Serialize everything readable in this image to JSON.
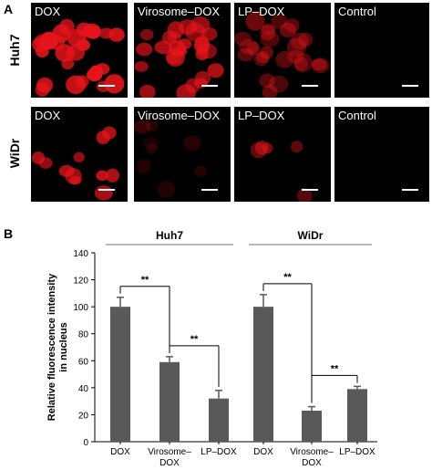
{
  "panelA": {
    "letter": "A",
    "rows": [
      {
        "label": "Huh7",
        "images": [
          {
            "caption": "DOX",
            "brightness": 1.0,
            "nuclei": "dense"
          },
          {
            "caption": "Virosome–DOX",
            "brightness": 0.75,
            "nuclei": "dense"
          },
          {
            "caption": "LP–DOX",
            "brightness": 0.45,
            "nuclei": "dense"
          },
          {
            "caption": "Control",
            "brightness": 0.0,
            "nuclei": "none"
          }
        ]
      },
      {
        "label": "WiDr",
        "images": [
          {
            "caption": "DOX",
            "brightness": 0.9,
            "nuclei": "sparse"
          },
          {
            "caption": "Virosome–DOX",
            "brightness": 0.15,
            "nuclei": "faint"
          },
          {
            "caption": "LP–DOX",
            "brightness": 0.5,
            "nuclei": "few"
          },
          {
            "caption": "Control",
            "brightness": 0.0,
            "nuclei": "none"
          }
        ]
      }
    ],
    "colors": {
      "signal": "#e8141a",
      "background": "#000000",
      "scalebar": "#ffffff"
    }
  },
  "panelB": {
    "letter": "B"
  },
  "chart_data": {
    "type": "bar",
    "ylabel": "Relative fluorescence intensity in nucleus",
    "ylim": [
      0,
      140
    ],
    "yticks": [
      0,
      20,
      40,
      60,
      80,
      100,
      120,
      140
    ],
    "groups": [
      {
        "name": "Huh7",
        "categories": [
          "DOX",
          "Virosome–DOX",
          "LP–DOX"
        ],
        "values": [
          100,
          59,
          32
        ],
        "errors": [
          7,
          4,
          6
        ]
      },
      {
        "name": "WiDr",
        "categories": [
          "DOX",
          "Virosome–DOX",
          "LP–DOX"
        ],
        "values": [
          100,
          23,
          39
        ],
        "errors": [
          9,
          3,
          2
        ]
      }
    ],
    "significance": [
      {
        "group": 0,
        "from": 0,
        "to": 1,
        "label": "**"
      },
      {
        "group": 0,
        "from": 1,
        "to": 2,
        "label": "**"
      },
      {
        "group": 1,
        "from": 0,
        "to": 1,
        "label": "**"
      },
      {
        "group": 1,
        "from": 1,
        "to": 2,
        "label": "**"
      }
    ],
    "bar_color": "#595959"
  }
}
